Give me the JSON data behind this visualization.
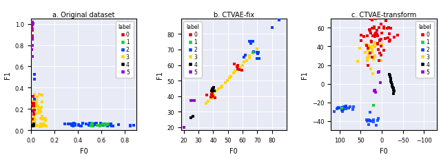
{
  "colors": {
    "0": "#e8000b",
    "1": "#1ac938",
    "2": "#023eff",
    "3": "#ffd700",
    "4": "#000000",
    "5": "#9400d3"
  },
  "bg_color": "#e8eaf6",
  "subplot_titles": [
    "a. Original dataset",
    "b. CTVAE-fix",
    "c. CTVAE-transform"
  ],
  "subplot1": {
    "xlabel": "F0",
    "ylabel": "F1",
    "xlim": [
      0,
      0.9
    ],
    "ylim": [
      0,
      1.05
    ],
    "xticks": [
      0.0,
      0.2,
      0.4,
      0.6,
      0.8
    ],
    "yticks": [
      0.0,
      0.2,
      0.4,
      0.6,
      0.8,
      1.0
    ]
  },
  "subplot2": {
    "xlabel": "F0",
    "ylabel": "F1",
    "xlim": [
      18,
      90
    ],
    "ylim": [
      18,
      90
    ],
    "xticks": [
      20,
      30,
      40,
      50,
      60,
      70,
      80
    ],
    "yticks": [
      20,
      30,
      40,
      50,
      60,
      70,
      80
    ]
  },
  "subplot3": {
    "xlabel": "F0",
    "ylabel": "F1",
    "xlim": [
      -130,
      120
    ],
    "ylim": [
      -50,
      70
    ],
    "xticks": [
      -100,
      -50,
      0,
      50,
      100
    ],
    "yticks": [
      -40,
      -20,
      0,
      20,
      40,
      60
    ]
  }
}
